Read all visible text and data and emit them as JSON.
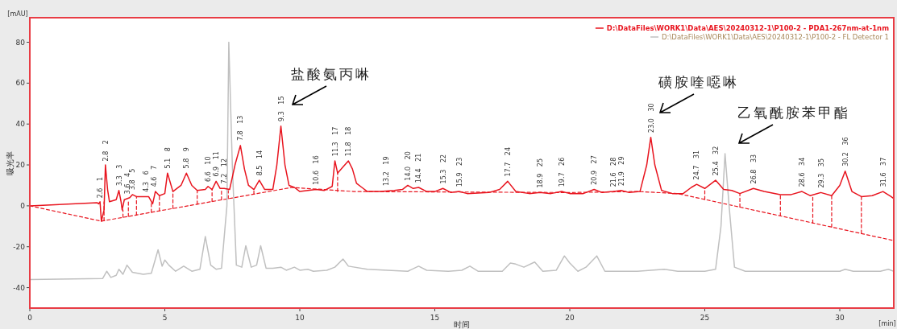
{
  "chart_data": {
    "type": "line",
    "xlabel": "时间",
    "ylabel": "吸光率",
    "xlim": [
      0,
      32
    ],
    "ylim": [
      -50,
      92
    ],
    "xticks": [
      0,
      5,
      10,
      15,
      20,
      25,
      30
    ],
    "yticks": [
      -40,
      -20,
      0,
      20,
      40,
      60,
      80
    ],
    "legend": "top right",
    "line_style": "solid",
    "series": [
      {
        "name": "D:\\DataFiles\\WORK1\\Data\\AES\\20240312-1\\P100-2 - PDA1-267nm-at-1nm",
        "color": "#e8141e",
        "x": [
          0,
          2.5,
          2.55,
          2.6,
          2.65,
          2.75,
          2.8,
          2.88,
          2.95,
          3.2,
          3.3,
          3.38,
          3.42,
          3.5,
          3.6,
          3.7,
          3.8,
          3.95,
          4.1,
          4.4,
          4.55,
          4.65,
          4.8,
          5.0,
          5.1,
          5.3,
          5.6,
          5.8,
          6.0,
          6.2,
          6.5,
          6.6,
          6.75,
          6.9,
          7.05,
          7.2,
          7.4,
          7.6,
          7.8,
          7.95,
          8.1,
          8.3,
          8.5,
          8.7,
          9.0,
          9.15,
          9.3,
          9.45,
          9.6,
          9.8,
          10.0,
          10.3,
          10.6,
          10.9,
          11.2,
          11.3,
          11.4,
          11.6,
          11.8,
          11.95,
          12.1,
          12.3,
          12.5,
          13,
          13.5,
          13.8,
          14.0,
          14.2,
          14.4,
          14.7,
          15.0,
          15.3,
          15.6,
          15.9,
          16.2,
          17.0,
          17.4,
          17.7,
          18.0,
          18.5,
          18.9,
          19.3,
          19.7,
          20.0,
          20.5,
          20.9,
          21.2,
          21.6,
          21.9,
          22.2,
          22.6,
          22.85,
          23.0,
          23.15,
          23.4,
          23.8,
          24.2,
          24.5,
          24.7,
          25.0,
          25.4,
          25.7,
          26.0,
          26.3,
          26.8,
          27.2,
          27.8,
          28.2,
          28.6,
          28.9,
          29.3,
          29.7,
          30.0,
          30.2,
          30.45,
          30.8,
          31.2,
          31.6,
          31.9,
          32
        ],
        "values": [
          0,
          1.5,
          1,
          2,
          -7.5,
          -2,
          20,
          8,
          2,
          3,
          7.5,
          2,
          -2,
          3,
          3.5,
          4,
          5.5,
          4.5,
          4.5,
          4.5,
          1,
          7,
          5,
          6,
          16,
          7,
          10,
          16,
          10,
          7.5,
          8,
          9.5,
          8,
          12,
          8.5,
          8.5,
          8,
          20,
          29.5,
          18,
          10,
          8,
          12.5,
          8,
          8,
          20,
          39,
          20,
          10,
          9,
          7,
          7.5,
          8,
          7.5,
          9.5,
          22,
          16,
          19,
          22,
          18,
          11,
          9,
          7,
          7,
          7.5,
          8,
          10,
          8.5,
          9,
          7,
          7,
          8.5,
          6.5,
          7,
          6,
          6.5,
          8,
          12,
          7,
          6,
          6.5,
          6,
          7,
          6,
          6,
          8,
          6.5,
          7,
          7.5,
          6.5,
          7,
          20,
          33.5,
          20,
          7.5,
          6,
          6,
          9,
          10.5,
          8.5,
          12.5,
          8,
          7.5,
          6,
          8.5,
          7,
          5.5,
          5.5,
          7,
          5,
          6.5,
          5,
          10,
          17,
          7,
          4.5,
          5,
          7,
          4.5,
          3.5
        ]
      },
      {
        "name": "D:\\DataFiles\\WORK1\\Data\\AES\\20240312-1\\P100-2 - FL Detector 1",
        "color": "#c0c0c0",
        "x": [
          0,
          2.7,
          2.85,
          3.0,
          3.2,
          3.3,
          3.45,
          3.6,
          3.8,
          4.2,
          4.5,
          4.75,
          4.9,
          5.0,
          5.15,
          5.4,
          5.7,
          6.0,
          6.3,
          6.5,
          6.7,
          6.9,
          7.1,
          7.3,
          7.37,
          7.5,
          7.65,
          7.85,
          8.0,
          8.2,
          8.4,
          8.55,
          8.75,
          9.0,
          9.3,
          9.5,
          9.8,
          10.0,
          10.3,
          10.5,
          11,
          11.3,
          11.6,
          11.8,
          12.5,
          14.0,
          14.4,
          14.7,
          15.5,
          16.0,
          16.3,
          16.6,
          17.5,
          17.8,
          18.0,
          18.3,
          18.7,
          19.0,
          19.5,
          19.8,
          20.0,
          20.3,
          20.6,
          21.0,
          21.3,
          22.5,
          23.5,
          24.0,
          25.0,
          25.4,
          25.6,
          25.75,
          25.9,
          26.1,
          26.5,
          30,
          30.2,
          30.5,
          31.5,
          31.8,
          32
        ],
        "values": [
          -36,
          -35.5,
          -32,
          -35,
          -34,
          -31,
          -33.5,
          -29,
          -32.5,
          -33.5,
          -33,
          -21.5,
          -29.5,
          -26.5,
          -29,
          -32,
          -29.5,
          -32,
          -31,
          -15,
          -29,
          -31,
          -30.5,
          0,
          80,
          20,
          -29,
          -30,
          -19.5,
          -30,
          -29,
          -19.5,
          -30.5,
          -30.5,
          -30,
          -31.5,
          -30,
          -31.5,
          -31,
          -32,
          -31.5,
          -30,
          -26,
          -29.5,
          -31,
          -32,
          -29.5,
          -31.5,
          -32,
          -31.5,
          -29.5,
          -32,
          -32,
          -28,
          -28.5,
          -30,
          -27.5,
          -32,
          -31.5,
          -24.5,
          -28,
          -32,
          -30,
          -24.5,
          -32,
          -32,
          -31,
          -32,
          -32,
          -31,
          -10,
          25.5,
          0,
          -30,
          -32,
          -32,
          -31,
          -32,
          -32,
          -31,
          -32
        ]
      },
      {
        "color": "#e8141e",
        "line_style": "dashed",
        "x": [
          0,
          2.65,
          9.7,
          12.0,
          20,
          22.5,
          24,
          32
        ],
        "values": [
          0,
          -7.5,
          9,
          7,
          6.5,
          7,
          6,
          -17
        ]
      },
      {
        "color": "#e8141e",
        "line_style": "dashed",
        "x": [
          2.75,
          2.75,
          null,
          3.45,
          3.45,
          null,
          3.65,
          3.65,
          null,
          3.95,
          3.95,
          null,
          4.5,
          4.5,
          null,
          4.8,
          4.8,
          null,
          5.3,
          5.3,
          null,
          6.2,
          6.2,
          null,
          6.75,
          6.75,
          null,
          7.1,
          7.1,
          null,
          7.35,
          7.35,
          null,
          8.3,
          8.3,
          null,
          11.4,
          11.4,
          null,
          25.0,
          25.0,
          null,
          26.3,
          26.3,
          null,
          27.8,
          27.8,
          null,
          29.0,
          29.0,
          null,
          29.7,
          29.7,
          null,
          30.8,
          30.8
        ],
        "values": [
          -7.3,
          2,
          null,
          -5.6,
          -2,
          null,
          -5.2,
          3,
          null,
          -4.5,
          4.5,
          null,
          -3.2,
          1.5,
          null,
          -2.5,
          5,
          null,
          -1.3,
          7,
          null,
          0.8,
          7.5,
          null,
          2.1,
          8,
          null,
          2.9,
          8.5,
          null,
          3.5,
          7.5,
          null,
          5.7,
          8,
          null,
          7,
          16,
          null,
          3.1,
          8.5,
          null,
          -0.6,
          6,
          null,
          -4.9,
          5.5,
          null,
          -8.4,
          5,
          null,
          -10.4,
          5,
          null,
          -13.5,
          4.5
        ]
      }
    ],
    "annotations": [
      "[mAU]",
      "[min]",
      "盐酸氨丙啉",
      "磺胺喹噁啉",
      "乙氧酰胺苯甲酯",
      {
        "text": "2.6 1",
        "x": 2.6,
        "y": 3
      },
      {
        "text": "2.8 2",
        "x": 2.8,
        "y": 21
      },
      {
        "text": "3.3 3",
        "x": 3.3,
        "y": 9
      },
      {
        "text": "3.6 4",
        "x": 3.6,
        "y": 5
      },
      {
        "text": "3.8 5",
        "x": 3.8,
        "y": 7
      },
      {
        "text": "4.3 6",
        "x": 4.3,
        "y": 6
      },
      {
        "text": "4.6 7",
        "x": 4.6,
        "y": 8.5
      },
      {
        "text": "5.1 8",
        "x": 5.1,
        "y": 17.5
      },
      {
        "text": "5.8 9",
        "x": 5.8,
        "y": 17.5
      },
      {
        "text": "6.6 10",
        "x": 6.6,
        "y": 11
      },
      {
        "text": "6.9 11",
        "x": 6.9,
        "y": 13.5
      },
      {
        "text": "7.2 12",
        "x": 7.2,
        "y": 10
      },
      {
        "text": "7.8 13",
        "x": 7.8,
        "y": 31
      },
      {
        "text": "8.5 14",
        "x": 8.5,
        "y": 14
      },
      {
        "text": "9.3 15",
        "x": 9.3,
        "y": 40.5
      },
      {
        "text": "10.6 16",
        "x": 10.6,
        "y": 9.5
      },
      {
        "text": "11.3 17",
        "x": 11.3,
        "y": 23.5
      },
      {
        "text": "11.8 18",
        "x": 11.8,
        "y": 23.5
      },
      {
        "text": "13.2 19",
        "x": 13.2,
        "y": 9
      },
      {
        "text": "14.0 20",
        "x": 14.0,
        "y": 11.5
      },
      {
        "text": "14.4 21",
        "x": 14.4,
        "y": 10.5
      },
      {
        "text": "15.3 22",
        "x": 15.3,
        "y": 10
      },
      {
        "text": "15.9 23",
        "x": 15.9,
        "y": 8.5
      },
      {
        "text": "17.7 24",
        "x": 17.7,
        "y": 13.5
      },
      {
        "text": "18.9 25",
        "x": 18.9,
        "y": 8
      },
      {
        "text": "19.7 26",
        "x": 19.7,
        "y": 8.5
      },
      {
        "text": "20.9 27",
        "x": 20.9,
        "y": 9.5
      },
      {
        "text": "21.6 28",
        "x": 21.6,
        "y": 8.5
      },
      {
        "text": "21.9 29",
        "x": 21.9,
        "y": 9
      },
      {
        "text": "23.0 30",
        "x": 23.0,
        "y": 35
      },
      {
        "text": "24.7 31",
        "x": 24.7,
        "y": 12
      },
      {
        "text": "25.4 32",
        "x": 25.4,
        "y": 14
      },
      {
        "text": "26.8 33",
        "x": 26.8,
        "y": 10
      },
      {
        "text": "28.6 34",
        "x": 28.6,
        "y": 8.5
      },
      {
        "text": "29.3 35",
        "x": 29.3,
        "y": 8
      },
      {
        "text": "30.2 36",
        "x": 30.2,
        "y": 18.5
      },
      {
        "text": "31.6 37",
        "x": 31.6,
        "y": 8.5
      }
    ]
  }
}
